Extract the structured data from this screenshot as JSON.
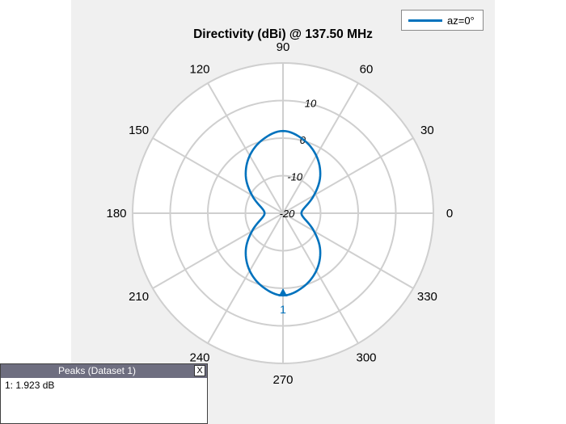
{
  "chart_data": {
    "type": "polar-line",
    "title": "Directivity (dBi) @ 137.50 MHz",
    "angle_ticks": [
      "0",
      "30",
      "60",
      "90",
      "120",
      "150",
      "180",
      "210",
      "240",
      "270",
      "300",
      "330"
    ],
    "radial_ticks": [
      "10",
      "0",
      "-10",
      "-20"
    ],
    "radial_values": [
      10,
      0,
      -10,
      -20
    ],
    "rlim": [
      -20,
      20
    ],
    "grid": true,
    "legend_position": "top-right",
    "series": [
      {
        "name": "az=0°",
        "color": "#0072bd",
        "angles_deg": [
          0,
          15,
          30,
          45,
          60,
          75,
          90,
          105,
          120,
          135,
          150,
          165,
          180,
          195,
          210,
          225,
          240,
          255,
          270,
          285,
          300,
          315,
          330,
          345
        ],
        "values_db": [
          -15.1,
          -14.0,
          -10.5,
          -6.0,
          -2.3,
          0.4,
          1.9,
          0.4,
          -2.3,
          -6.0,
          -10.5,
          -14.0,
          -15.1,
          -14.0,
          -10.5,
          -6.0,
          -2.3,
          0.4,
          1.9,
          0.4,
          -2.3,
          -6.0,
          -10.5,
          -14.0
        ]
      }
    ],
    "peak_marker": {
      "label": "1",
      "angle_deg": 270,
      "value_db": 1.923
    }
  },
  "legend": {
    "label": "az=0°"
  },
  "peaks_panel": {
    "title": "Peaks (Dataset 1)",
    "close_label": "X",
    "entries": [
      "1: 1.923 dB"
    ]
  }
}
